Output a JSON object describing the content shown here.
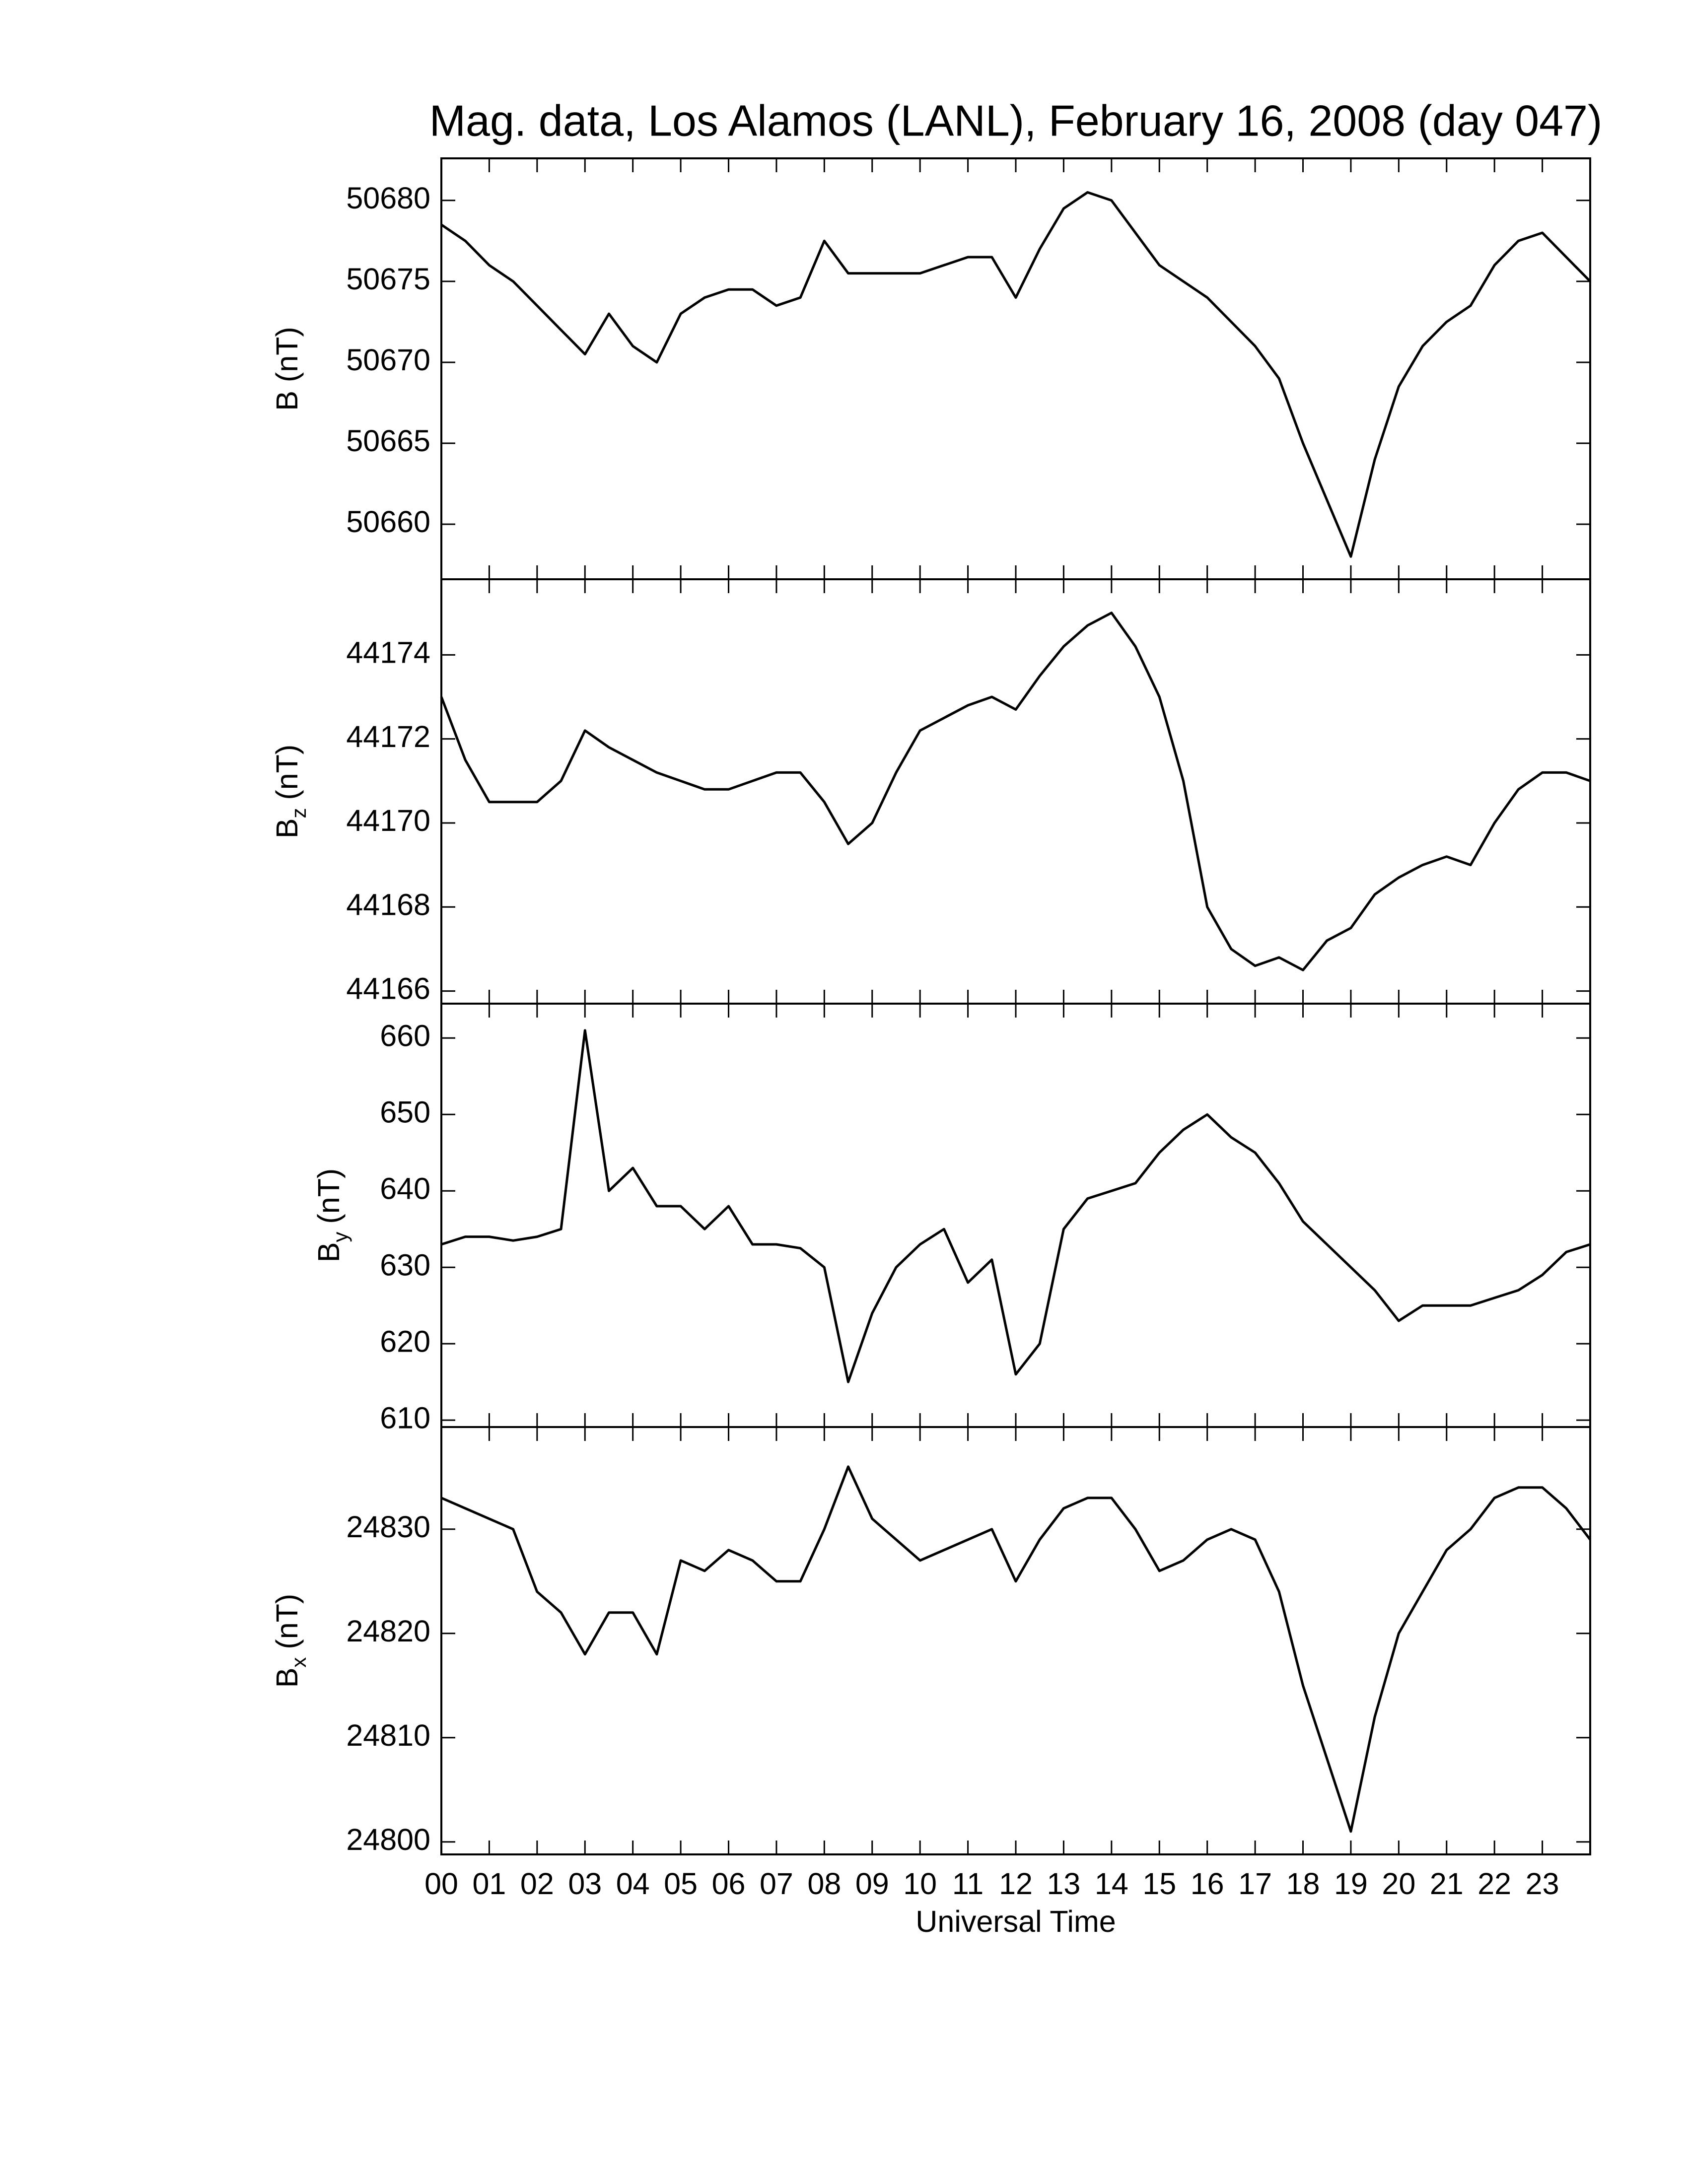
{
  "chart_data": [
    {
      "type": "line",
      "title": "Mag. data, Los Alamos (LANL), February 16, 2008 (day 047)",
      "ylabel": "B (nT)",
      "x": [
        0,
        0.5,
        1,
        1.5,
        2,
        2.5,
        3,
        3.5,
        4,
        4.5,
        5,
        5.5,
        6,
        6.5,
        7,
        7.5,
        8,
        8.5,
        9,
        9.5,
        10,
        10.5,
        11,
        11.5,
        12,
        12.5,
        13,
        13.5,
        14,
        14.5,
        15,
        15.5,
        16,
        16.5,
        17,
        17.5,
        18,
        18.5,
        19,
        19.5,
        20,
        20.5,
        21,
        21.5,
        22,
        22.5,
        23,
        23.5,
        24
      ],
      "values": [
        50678.5,
        50677.5,
        50676,
        50675,
        50673.5,
        50672,
        50670.5,
        50673,
        50671,
        50670,
        50673,
        50674,
        50674.5,
        50674.5,
        50673.5,
        50674,
        50677.5,
        50675.5,
        50675.5,
        50675.5,
        50675.5,
        50676,
        50676.5,
        50676.5,
        50674,
        50677,
        50679.5,
        50680.5,
        50680,
        50678,
        50676,
        50675,
        50674,
        50672.5,
        50671,
        50669,
        50665,
        50661.5,
        50658,
        50664,
        50668.5,
        50671,
        50672.5,
        50673.5,
        50676,
        50677.5,
        50678,
        50676.5,
        50675
      ],
      "color": "#000000",
      "xlim": [
        0,
        24
      ],
      "xticks": [
        0,
        1,
        2,
        3,
        4,
        5,
        6,
        7,
        8,
        9,
        10,
        11,
        12,
        13,
        14,
        15,
        16,
        17,
        18,
        19,
        20,
        21,
        22,
        23
      ],
      "ylim": [
        50656.6,
        50682.6
      ],
      "yticks": [
        50660,
        50665,
        50670,
        50675,
        50680
      ]
    },
    {
      "type": "line",
      "ylabel": "B",
      "ylabel_sub": "z",
      "ylabel_unit": "(nT)",
      "x": [
        0,
        0.5,
        1,
        1.5,
        2,
        2.5,
        3,
        3.5,
        4,
        4.5,
        5,
        5.5,
        6,
        6.5,
        7,
        7.5,
        8,
        8.5,
        9,
        9.5,
        10,
        10.5,
        11,
        11.5,
        12,
        12.5,
        13,
        13.5,
        14,
        14.5,
        15,
        15.5,
        16,
        16.5,
        17,
        17.5,
        18,
        18.5,
        19,
        19.5,
        20,
        20.5,
        21,
        21.5,
        22,
        22.5,
        23,
        23.5,
        24
      ],
      "values": [
        44173,
        44171.5,
        44170.5,
        44170.5,
        44170.5,
        44171,
        44172.2,
        44171.8,
        44171.5,
        44171.2,
        44171,
        44170.8,
        44170.8,
        44171,
        44171.2,
        44171.2,
        44170.5,
        44169.5,
        44170,
        44171.2,
        44172.2,
        44172.5,
        44172.8,
        44173,
        44172.7,
        44173.5,
        44174.2,
        44174.7,
        44175,
        44174.2,
        44173,
        44171,
        44168,
        44167,
        44166.6,
        44166.8,
        44166.5,
        44167.2,
        44167.5,
        44168.3,
        44168.7,
        44169,
        44169.2,
        44169,
        44170,
        44170.8,
        44171.2,
        44171.2,
        44171
      ],
      "color": "#000000",
      "xlim": [
        0,
        24
      ],
      "xticks": [
        0,
        1,
        2,
        3,
        4,
        5,
        6,
        7,
        8,
        9,
        10,
        11,
        12,
        13,
        14,
        15,
        16,
        17,
        18,
        19,
        20,
        21,
        22,
        23
      ],
      "ylim": [
        44165.7,
        44175.8
      ],
      "yticks": [
        44166,
        44168,
        44170,
        44172,
        44174
      ]
    },
    {
      "type": "line",
      "ylabel": "B",
      "ylabel_sub": "y",
      "ylabel_unit": "(nT)",
      "x": [
        0,
        0.5,
        1,
        1.5,
        2,
        2.5,
        3,
        3.5,
        4,
        4.5,
        5,
        5.5,
        6,
        6.5,
        7,
        7.5,
        8,
        8.5,
        9,
        9.5,
        10,
        10.5,
        11,
        11.5,
        12,
        12.5,
        13,
        13.5,
        14,
        14.5,
        15,
        15.5,
        16,
        16.5,
        17,
        17.5,
        18,
        18.5,
        19,
        19.5,
        20,
        20.5,
        21,
        21.5,
        22,
        22.5,
        23,
        23.5,
        24
      ],
      "values": [
        633,
        634,
        634,
        633.5,
        634,
        635,
        661,
        640,
        643,
        638,
        638,
        635,
        638,
        633,
        633,
        632.5,
        630,
        615,
        624,
        630,
        633,
        635,
        628,
        631,
        616,
        620,
        635,
        639,
        640,
        641,
        645,
        648,
        650,
        647,
        645,
        641,
        636,
        633,
        630,
        627,
        623,
        625,
        625,
        625,
        626,
        627,
        629,
        632,
        633
      ],
      "color": "#000000",
      "xlim": [
        0,
        24
      ],
      "xticks": [
        0,
        1,
        2,
        3,
        4,
        5,
        6,
        7,
        8,
        9,
        10,
        11,
        12,
        13,
        14,
        15,
        16,
        17,
        18,
        19,
        20,
        21,
        22,
        23
      ],
      "ylim": [
        609.1,
        664.5
      ],
      "yticks": [
        610,
        620,
        630,
        640,
        650,
        660
      ]
    },
    {
      "type": "line",
      "ylabel": "B",
      "ylabel_sub": "x",
      "ylabel_unit": "(nT)",
      "xlabel": "Universal Time",
      "x": [
        0,
        0.5,
        1,
        1.5,
        2,
        2.5,
        3,
        3.5,
        4,
        4.5,
        5,
        5.5,
        6,
        6.5,
        7,
        7.5,
        8,
        8.5,
        9,
        9.5,
        10,
        10.5,
        11,
        11.5,
        12,
        12.5,
        13,
        13.5,
        14,
        14.5,
        15,
        15.5,
        16,
        16.5,
        17,
        17.5,
        18,
        18.5,
        19,
        19.5,
        20,
        20.5,
        21,
        21.5,
        22,
        22.5,
        23,
        23.5,
        24
      ],
      "values": [
        24833,
        24832,
        24831,
        24830,
        24824,
        24822,
        24818,
        24822,
        24822,
        24818,
        24827,
        24826,
        24828,
        24827,
        24825,
        24825,
        24830,
        24836,
        24831,
        24829,
        24827,
        24828,
        24829,
        24830,
        24825,
        24829,
        24832,
        24833,
        24833,
        24830,
        24826,
        24827,
        24829,
        24830,
        24829,
        24824,
        24815,
        24808,
        24801,
        24812,
        24820,
        24824,
        24828,
        24830,
        24833,
        24834,
        24834,
        24832,
        24829
      ],
      "color": "#000000",
      "xlim": [
        0,
        24
      ],
      "xticks": [
        {
          "value": 0,
          "label": "00"
        },
        {
          "value": 1,
          "label": "01"
        },
        {
          "value": 2,
          "label": "02"
        },
        {
          "value": 3,
          "label": "03"
        },
        {
          "value": 4,
          "label": "04"
        },
        {
          "value": 5,
          "label": "05"
        },
        {
          "value": 6,
          "label": "06"
        },
        {
          "value": 7,
          "label": "07"
        },
        {
          "value": 8,
          "label": "08"
        },
        {
          "value": 9,
          "label": "09"
        },
        {
          "value": 10,
          "label": "10"
        },
        {
          "value": 11,
          "label": "11"
        },
        {
          "value": 12,
          "label": "12"
        },
        {
          "value": 13,
          "label": "13"
        },
        {
          "value": 14,
          "label": "14"
        },
        {
          "value": 15,
          "label": "15"
        },
        {
          "value": 16,
          "label": "16"
        },
        {
          "value": 17,
          "label": "17"
        },
        {
          "value": 18,
          "label": "18"
        },
        {
          "value": 19,
          "label": "19"
        },
        {
          "value": 20,
          "label": "20"
        },
        {
          "value": 21,
          "label": "21"
        },
        {
          "value": 22,
          "label": "22"
        },
        {
          "value": 23,
          "label": "23"
        }
      ],
      "ylim": [
        24798.8,
        24839.8
      ],
      "yticks": [
        24800,
        24810,
        24820,
        24830
      ]
    }
  ]
}
